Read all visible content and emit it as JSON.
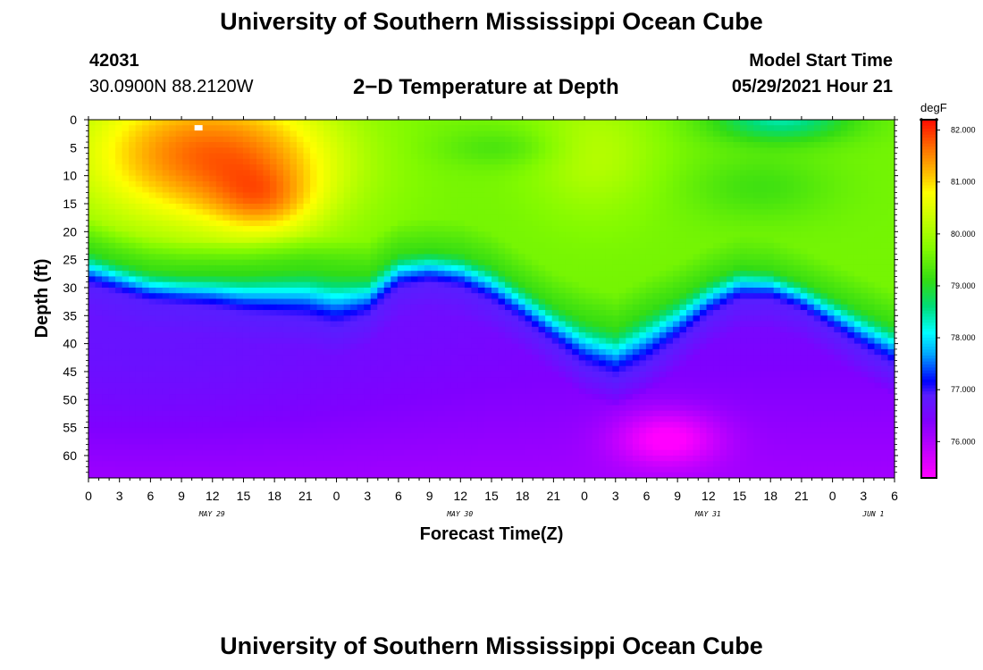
{
  "header": {
    "title_top": "University of Southern Mississippi Ocean Cube",
    "title_bottom": "University of Southern Mississippi Ocean Cube",
    "station_id": "42031",
    "station_coords": "30.0900N  88.2120W",
    "plot_title": "2−D Temperature at Depth",
    "model_label": "Model Start Time",
    "model_time": "05/29/2021 Hour 21"
  },
  "chart_data": {
    "type": "heatmap",
    "title": "2−D Temperature at Depth",
    "xlabel": "Forecast Time(Z)",
    "ylabel": "Depth (ft)",
    "x_range_hours": [
      0,
      78
    ],
    "y_range_ft": [
      0,
      64
    ],
    "x_ticks": [
      "0",
      "3",
      "6",
      "9",
      "12",
      "15",
      "18",
      "21",
      "0",
      "3",
      "6",
      "9",
      "12",
      "15",
      "18",
      "21",
      "0",
      "3",
      "6",
      "9",
      "12",
      "15",
      "18",
      "21",
      "0",
      "3",
      "6"
    ],
    "y_ticks": [
      0,
      5,
      10,
      15,
      20,
      25,
      30,
      35,
      40,
      45,
      50,
      55,
      60
    ],
    "date_labels": [
      {
        "label": "MAY 29",
        "hour": 11
      },
      {
        "label": "MAY 30",
        "hour": 35
      },
      {
        "label": "MAY 31",
        "hour": 59
      },
      {
        "label": "JUN 1",
        "hour": 75
      }
    ],
    "colorbar": {
      "unit": "degF",
      "range": [
        75.3,
        82.2
      ],
      "ticks": [
        "82.000",
        "81.000",
        "80.000",
        "79.000",
        "78.000",
        "77.000",
        "76.000"
      ],
      "tick_values": [
        82,
        81,
        80,
        79,
        78,
        77,
        76
      ]
    },
    "thermocline": {
      "hours": [
        0,
        3,
        6,
        9,
        12,
        15,
        18,
        21,
        24,
        27,
        30,
        33,
        36,
        39,
        42,
        45,
        48,
        51,
        54,
        57,
        60,
        63,
        66,
        69,
        72,
        75,
        78
      ],
      "top_depth_ft": [
        22.5,
        24.5,
        26,
        26.5,
        26.5,
        26.5,
        26,
        25.5,
        26,
        26.5,
        23,
        22.5,
        23,
        25,
        28.5,
        32,
        34.5,
        36,
        33,
        30.5,
        27.5,
        25.5,
        26,
        28,
        30.5,
        33,
        35.5
      ],
      "bottom_depth_ft": [
        30,
        31.5,
        33,
        33.5,
        34,
        35,
        35.5,
        36,
        37.5,
        35.5,
        30.5,
        29.5,
        30.5,
        33,
        36.5,
        40.5,
        44.5,
        46.5,
        44,
        40,
        35.5,
        32.5,
        32.5,
        34.5,
        38,
        41.5,
        44.5
      ]
    },
    "annotations": [
      {
        "type": "warm-core",
        "hour": 10,
        "depth_ft": 4,
        "temp_f": 82.0
      },
      {
        "type": "warm-core",
        "hour": 16.5,
        "depth_ft": 15,
        "temp_f": 81.7
      },
      {
        "type": "cool-core",
        "hour": 56,
        "depth_ft": 57,
        "temp_f": 75.4
      }
    ]
  }
}
